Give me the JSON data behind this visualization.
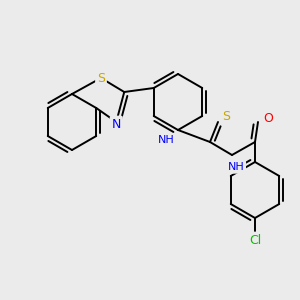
{
  "background_color": "#ebebeb",
  "atom_colors": {
    "S": "#c8a800",
    "N": "#0000ff",
    "O": "#ff0000",
    "Cl": "#00c000",
    "C": "#000000",
    "H": "#555555"
  },
  "bond_color": "#000000",
  "lw": 1.4
}
